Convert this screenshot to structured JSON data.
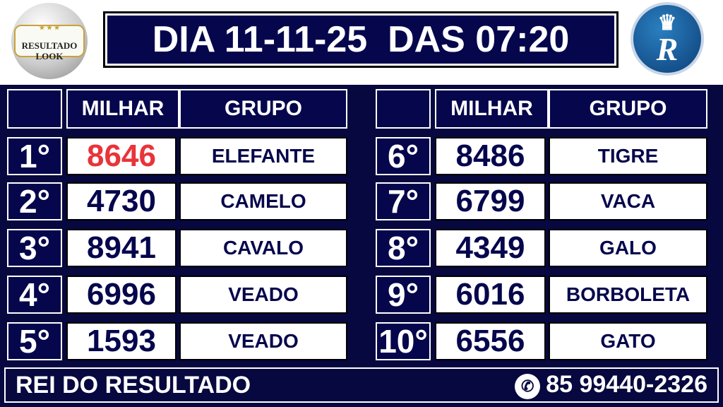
{
  "header": {
    "title": "DIA 11-11-25  DAS 07:20",
    "logo_left": "RESULTADO LOOK",
    "logo_right": "Rei R"
  },
  "columns": {
    "milhar": "MILHAR",
    "grupo": "GRUPO"
  },
  "results": [
    {
      "rank": "1°",
      "milhar": "8646",
      "grupo": "ELEFANTE",
      "highlight": "#e8343a"
    },
    {
      "rank": "2°",
      "milhar": "4730",
      "grupo": "CAMELO"
    },
    {
      "rank": "3°",
      "milhar": "8941",
      "grupo": "CAVALO"
    },
    {
      "rank": "4°",
      "milhar": "6996",
      "grupo": "VEADO"
    },
    {
      "rank": "5°",
      "milhar": "1593",
      "grupo": "VEADO"
    },
    {
      "rank": "6°",
      "milhar": "8486",
      "grupo": "TIGRE"
    },
    {
      "rank": "7°",
      "milhar": "6799",
      "grupo": "VACA"
    },
    {
      "rank": "8°",
      "milhar": "4349",
      "grupo": "GALO"
    },
    {
      "rank": "9°",
      "milhar": "6016",
      "grupo": "BORBOLETA"
    },
    {
      "rank": "10°",
      "milhar": "6556",
      "grupo": "GATO"
    }
  ],
  "footer": {
    "brand": "REI DO RESULTADO",
    "phone": "85 99440-2326",
    "phone_icon": "whatsapp-icon"
  },
  "colors": {
    "navy": "#06064d",
    "first_prize": "#e8343a"
  }
}
